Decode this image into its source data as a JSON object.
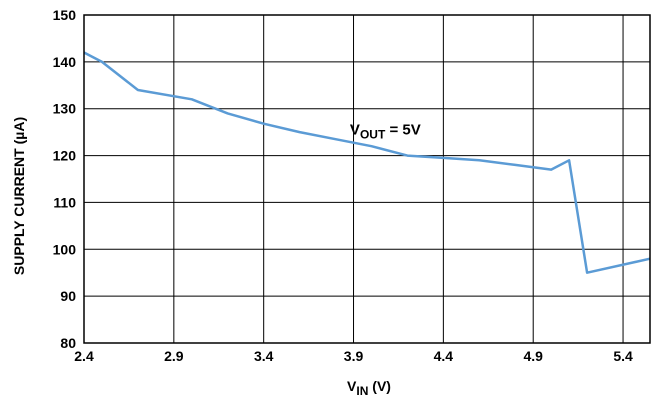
{
  "chart_data": {
    "type": "line",
    "xlabel": {
      "main": "V",
      "sub": "IN",
      "rest": " (V)"
    },
    "ylabel": "SUPPLY CURRENT (µA)",
    "xlim": [
      2.4,
      5.55
    ],
    "ylim": [
      80,
      150
    ],
    "x_ticks": [
      2.4,
      2.9,
      3.4,
      3.9,
      4.4,
      4.9,
      5.4
    ],
    "x_tick_labels": [
      "2.4",
      "2.9",
      "3.4",
      "3.9",
      "4.4",
      "4.9",
      "5.4"
    ],
    "y_ticks": [
      80,
      90,
      100,
      110,
      120,
      130,
      140,
      150
    ],
    "y_tick_labels": [
      "80",
      "90",
      "100",
      "110",
      "120",
      "130",
      "140",
      "150"
    ],
    "grid": true,
    "annotation": {
      "main": "V",
      "sub": "OUT",
      "rest": " = 5V",
      "x": 3.88,
      "y": 124.5
    },
    "series": [
      {
        "color": "#5b9bd5",
        "x": [
          2.4,
          2.5,
          2.7,
          3.0,
          3.2,
          3.4,
          3.6,
          3.8,
          4.0,
          4.2,
          4.4,
          4.6,
          4.8,
          5.0,
          5.1,
          5.2,
          5.55
        ],
        "y": [
          142,
          140,
          134,
          132,
          129,
          126.8,
          125,
          123.5,
          122,
          120,
          119.5,
          119,
          118,
          117,
          119,
          95,
          98
        ]
      }
    ]
  }
}
